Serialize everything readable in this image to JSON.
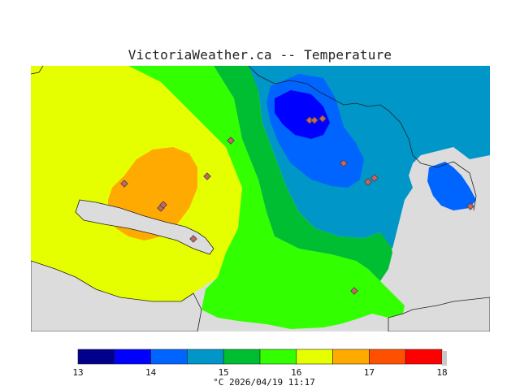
{
  "title": "VictoriaWeather.ca -- Temperature",
  "legend": {
    "ticks": [
      "13",
      "14",
      "15",
      "16",
      "17",
      "18"
    ],
    "unit": "°C",
    "timestamp": "2026/04/19 11:17",
    "bands": [
      {
        "from": 13.0,
        "to": 13.5,
        "color": "#00008c"
      },
      {
        "from": 13.5,
        "to": 14.0,
        "color": "#0000ff"
      },
      {
        "from": 14.0,
        "to": 14.5,
        "color": "#0064ff"
      },
      {
        "from": 14.5,
        "to": 15.0,
        "color": "#0096c8"
      },
      {
        "from": 15.0,
        "to": 15.5,
        "color": "#00be32"
      },
      {
        "from": 15.5,
        "to": 16.0,
        "color": "#32ff00"
      },
      {
        "from": 16.0,
        "to": 16.5,
        "color": "#e6ff00"
      },
      {
        "from": 16.5,
        "to": 17.0,
        "color": "#ffaa00"
      },
      {
        "from": 17.0,
        "to": 17.5,
        "color": "#ff5000"
      },
      {
        "from": 17.5,
        "to": 18.0,
        "color": "#ff0000"
      }
    ]
  },
  "colors": {
    "land_background": "#dcdcdc",
    "station_marker": "#c86464"
  }
}
